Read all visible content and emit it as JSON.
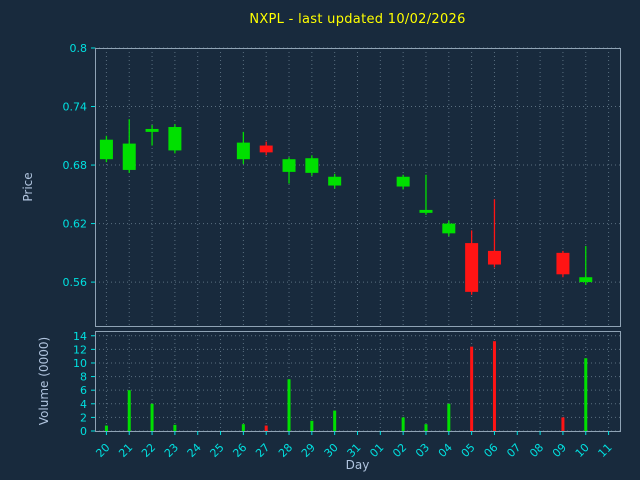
{
  "chart_data": {
    "type": "candlestick",
    "title": "NXPL - last updated 10/02/2026",
    "xlabel": "Day",
    "x_ticklabels": [
      "20",
      "21",
      "22",
      "23",
      "24",
      "25",
      "26",
      "27",
      "28",
      "29",
      "30",
      "31",
      "01",
      "02",
      "03",
      "04",
      "05",
      "06",
      "07",
      "08",
      "09",
      "10",
      "11"
    ],
    "price_panel": {
      "ylabel": "Price",
      "ylim": [
        0.515,
        0.8
      ],
      "ytick_labels": [
        "0.8",
        "0.74",
        "0.68",
        "0.62",
        "0.56"
      ],
      "ytick_values": [
        0.8,
        0.74,
        0.68,
        0.62,
        0.56
      ],
      "grid": true
    },
    "volume_panel": {
      "ylabel": "Volume (0000)",
      "ylim": [
        0,
        14.7
      ],
      "ytick_labels": [
        "14",
        "12",
        "10",
        "8",
        "6",
        "4",
        "2",
        "0"
      ],
      "ytick_values": [
        14,
        12,
        10,
        8,
        6,
        4,
        2,
        0
      ],
      "grid": true
    },
    "candles": [
      {
        "day": "20",
        "open": 0.686,
        "high": 0.71,
        "low": 0.683,
        "close": 0.706,
        "volume": 0.8
      },
      {
        "day": "21",
        "open": 0.675,
        "high": 0.727,
        "low": 0.672,
        "close": 0.702,
        "volume": 6.0
      },
      {
        "day": "22",
        "open": 0.714,
        "high": 0.721,
        "low": 0.7,
        "close": 0.717,
        "volume": 4.0
      },
      {
        "day": "23",
        "open": 0.695,
        "high": 0.722,
        "low": 0.692,
        "close": 0.719,
        "volume": 0.9
      },
      {
        "day": "26",
        "open": 0.686,
        "high": 0.714,
        "low": 0.681,
        "close": 0.703,
        "volume": 1.0
      },
      {
        "day": "27",
        "open": 0.7,
        "high": 0.704,
        "low": 0.69,
        "close": 0.693,
        "volume": 0.8
      },
      {
        "day": "28",
        "open": 0.673,
        "high": 0.688,
        "low": 0.661,
        "close": 0.686,
        "volume": 7.6
      },
      {
        "day": "29",
        "open": 0.672,
        "high": 0.69,
        "low": 0.669,
        "close": 0.687,
        "volume": 1.5
      },
      {
        "day": "30",
        "open": 0.659,
        "high": 0.671,
        "low": 0.656,
        "close": 0.668,
        "volume": 3.0
      },
      {
        "day": "02",
        "open": 0.658,
        "high": 0.67,
        "low": 0.655,
        "close": 0.668,
        "volume": 2.0
      },
      {
        "day": "03",
        "open": 0.631,
        "high": 0.67,
        "low": 0.629,
        "close": 0.634,
        "volume": 1.0
      },
      {
        "day": "04",
        "open": 0.61,
        "high": 0.623,
        "low": 0.607,
        "close": 0.62,
        "volume": 4.0
      },
      {
        "day": "05",
        "open": 0.6,
        "high": 0.613,
        "low": 0.547,
        "close": 0.55,
        "volume": 12.4
      },
      {
        "day": "06",
        "open": 0.592,
        "high": 0.645,
        "low": 0.575,
        "close": 0.578,
        "volume": 13.2
      },
      {
        "day": "09",
        "open": 0.59,
        "high": 0.592,
        "low": 0.565,
        "close": 0.568,
        "volume": 2.0
      },
      {
        "day": "10",
        "open": 0.56,
        "high": 0.597,
        "low": 0.557,
        "close": 0.565,
        "volume": 10.7
      }
    ],
    "colors": {
      "up": "#00e000",
      "down": "#ff1414",
      "title": "#ffff00",
      "tick_label": "#00e0e0",
      "axis_label": "#b0c4de",
      "grid": "#5a6f80",
      "background": "#182a3d",
      "spine": "#8fa3b5"
    },
    "legend": null
  }
}
